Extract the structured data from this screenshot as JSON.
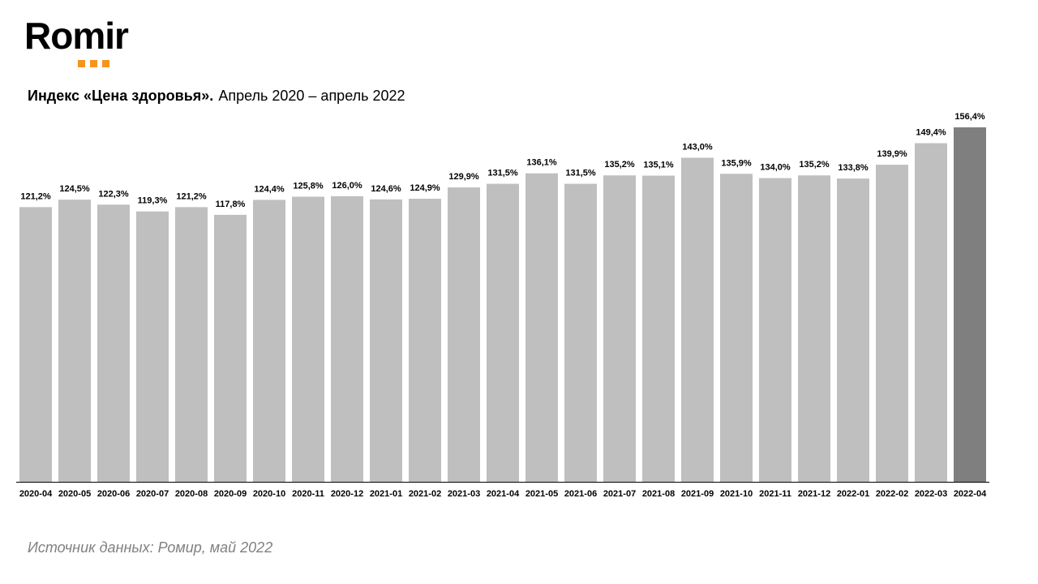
{
  "logo": {
    "text": "Romir",
    "dot_color": "#F7941D"
  },
  "title": {
    "main": "Индекс «Цена здоровья».",
    "sub": "Апрель 2020 – апрель 2022"
  },
  "source": "Источник данных: Ромир, май 2022",
  "colors": {
    "bar": "#BFBFBF",
    "bar_highlight": "#7F7F7F",
    "axis": "#000000"
  },
  "chart_data": {
    "type": "bar",
    "title": "Индекс «Цена здоровья». Апрель 2020 – апрель 2022",
    "xlabel": "",
    "ylabel": "",
    "ylim": [
      0,
      156.4
    ],
    "grid": false,
    "legend": "none",
    "highlight_index": 24,
    "categories": [
      "2020-04",
      "2020-05",
      "2020-06",
      "2020-07",
      "2020-08",
      "2020-09",
      "2020-10",
      "2020-11",
      "2020-12",
      "2021-01",
      "2021-02",
      "2021-03",
      "2021-04",
      "2021-05",
      "2021-06",
      "2021-07",
      "2021-08",
      "2021-09",
      "2021-10",
      "2021-11",
      "2021-12",
      "2022-01",
      "2022-02",
      "2022-03",
      "2022-04"
    ],
    "values": [
      121.2,
      124.5,
      122.3,
      119.3,
      121.2,
      117.8,
      124.4,
      125.8,
      126.0,
      124.6,
      124.9,
      129.9,
      131.5,
      136.1,
      131.5,
      135.2,
      135.1,
      143.0,
      135.9,
      134.0,
      135.2,
      133.8,
      139.9,
      149.4,
      156.4
    ],
    "labels": [
      "121,2%",
      "124,5%",
      "122,3%",
      "119,3%",
      "121,2%",
      "117,8%",
      "124,4%",
      "125,8%",
      "126,0%",
      "124,6%",
      "124,9%",
      "129,9%",
      "131,5%",
      "136,1%",
      "131,5%",
      "135,2%",
      "135,1%",
      "143,0%",
      "135,9%",
      "134,0%",
      "135,2%",
      "133,8%",
      "139,9%",
      "149,4%",
      "156,4%"
    ]
  }
}
